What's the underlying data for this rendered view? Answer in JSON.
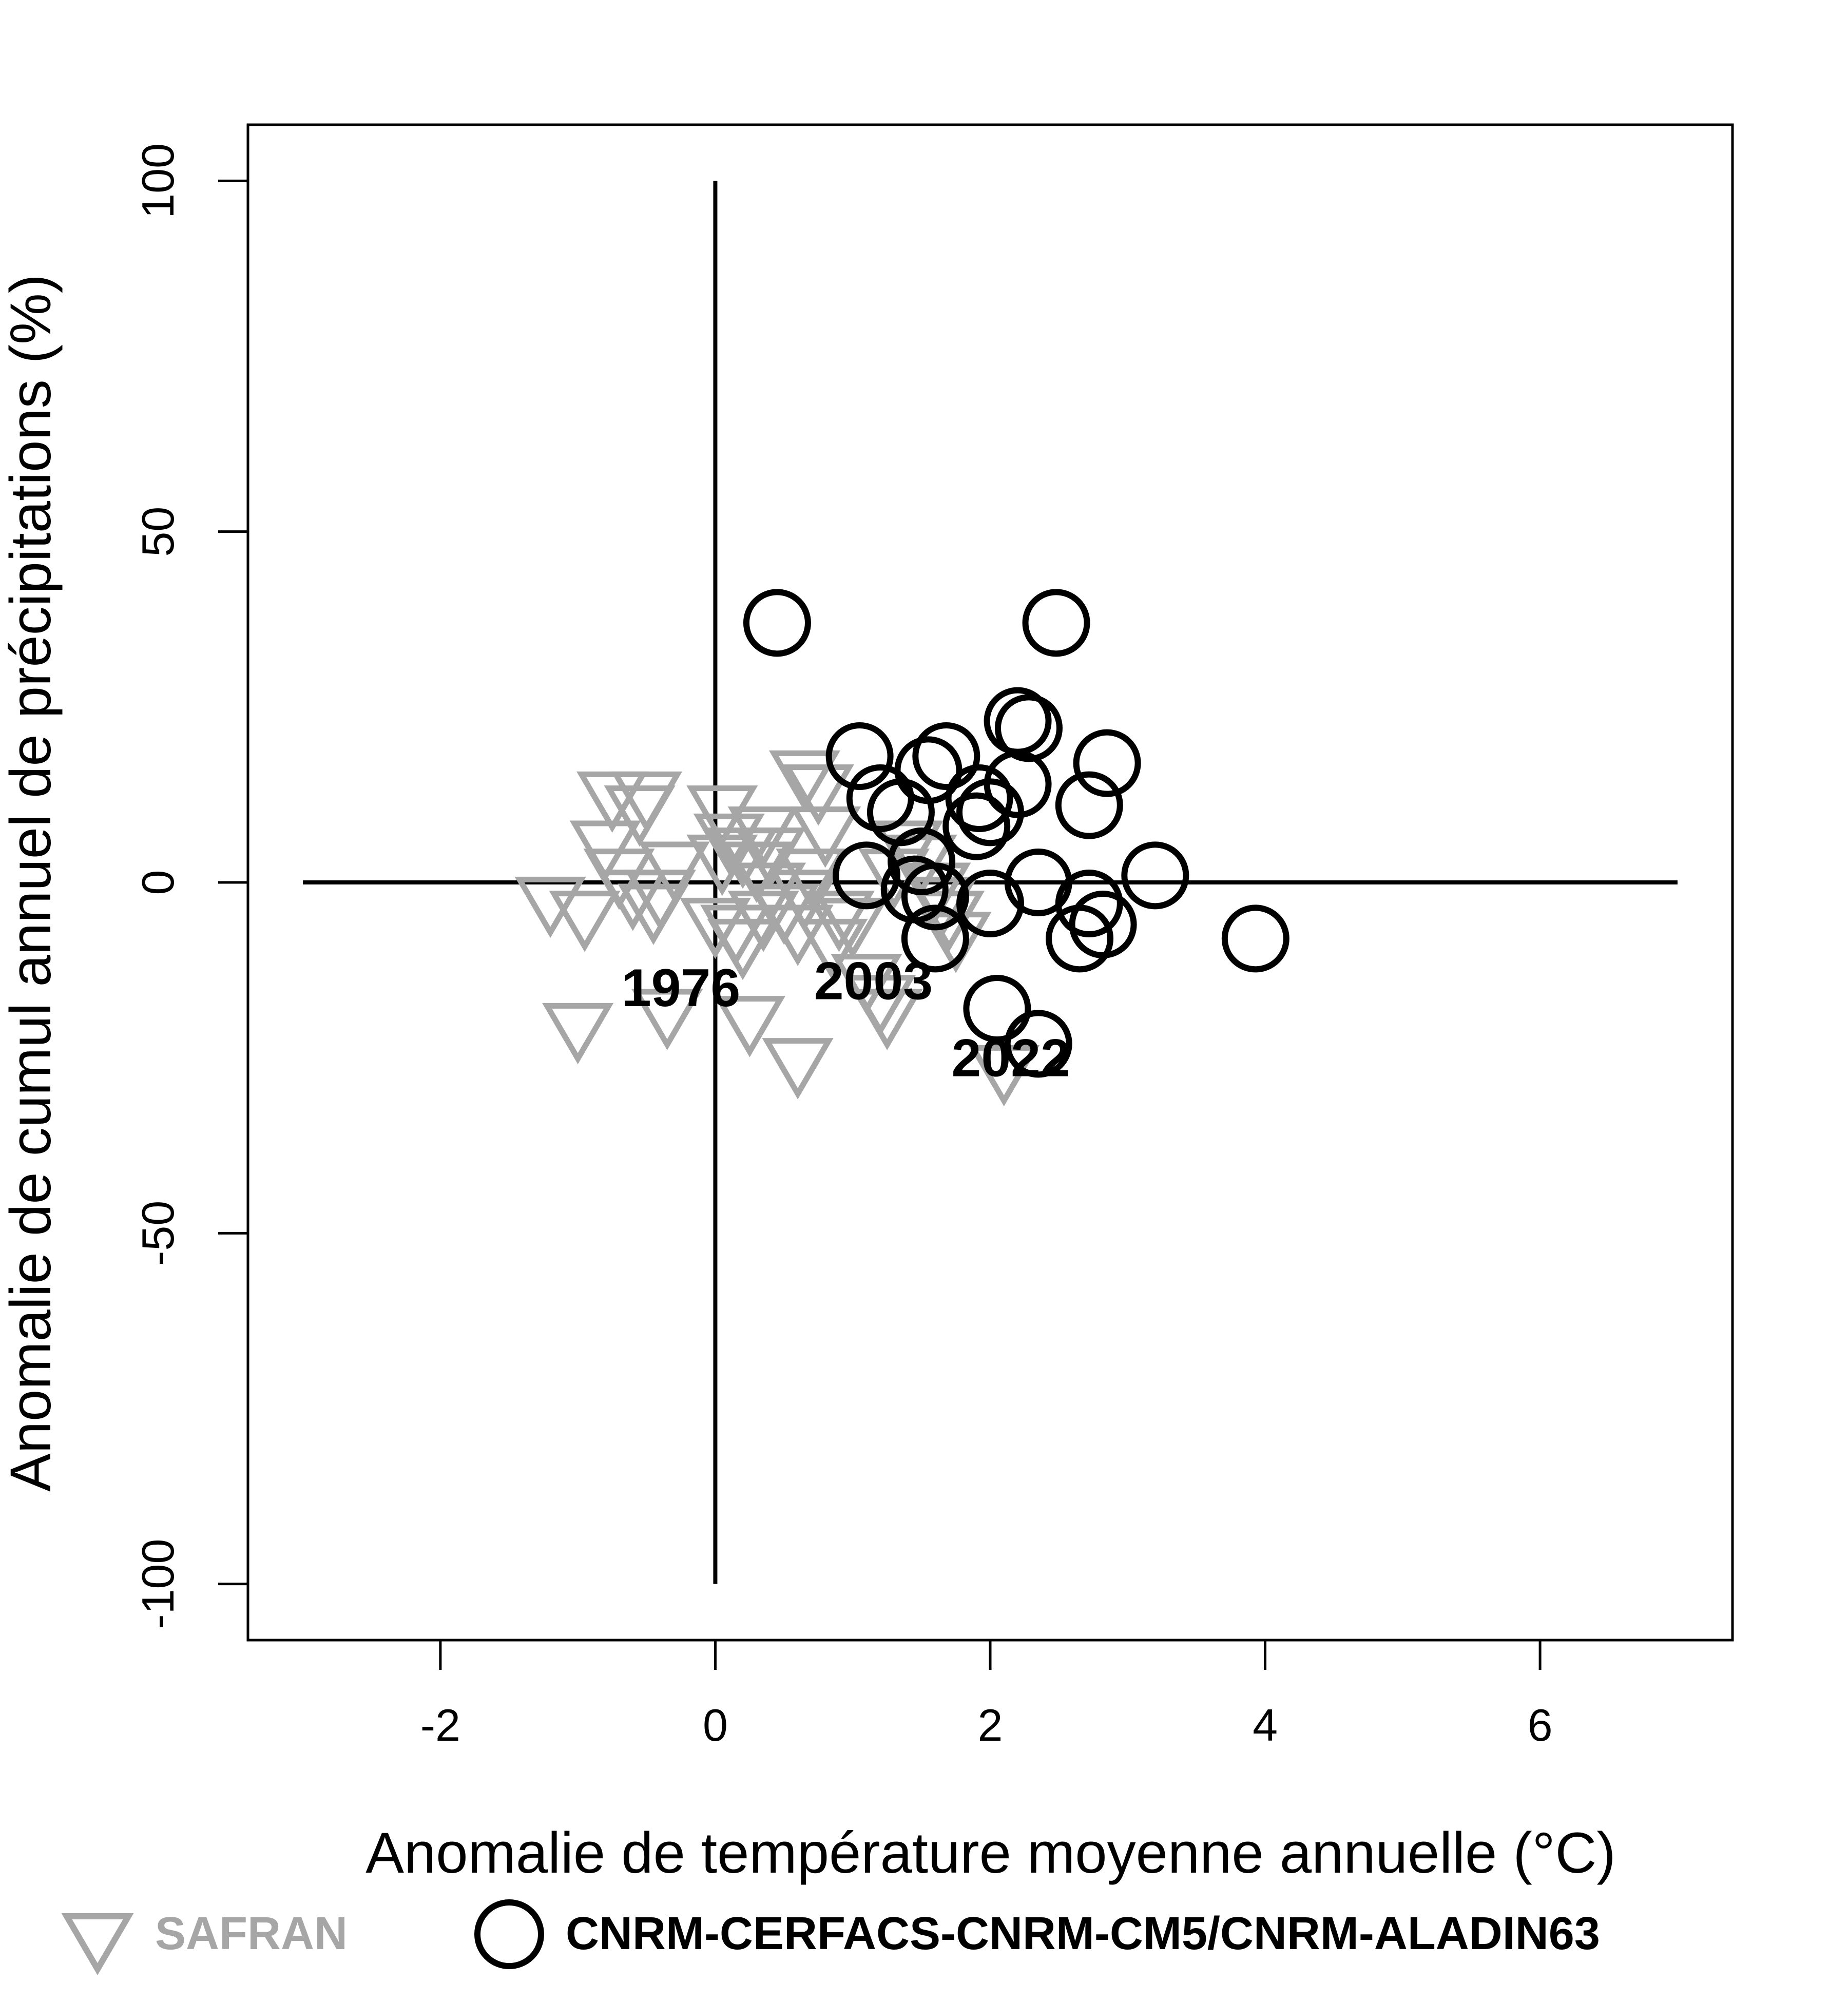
{
  "chart_data": {
    "type": "scatter",
    "xlabel": "Anomalie de température moyenne annuelle (°C)",
    "ylabel": "Anomalie de cumul annuel de précipitations (%)",
    "xlim": [
      -3.4,
      7.4
    ],
    "ylim": [
      -108,
      108
    ],
    "x_ticks": [
      -2,
      0,
      2,
      4,
      6
    ],
    "y_ticks": [
      -100,
      -50,
      0,
      50,
      100
    ],
    "reference_lines": {
      "horizontal": {
        "y": 0,
        "x_from": -3,
        "x_to": 7
      },
      "vertical": {
        "x": 0,
        "y_from": -100,
        "y_to": 100
      }
    },
    "series": [
      {
        "name": "SAFRAN",
        "marker": "triangle-down",
        "color": "#a6a6a6",
        "points": [
          [
            -1.2,
            -2
          ],
          [
            -0.95,
            -4
          ],
          [
            -1.0,
            -20
          ],
          [
            -0.75,
            13
          ],
          [
            -0.5,
            13
          ],
          [
            -0.8,
            6
          ],
          [
            -0.7,
            2
          ],
          [
            -0.6,
            -1
          ],
          [
            -0.45,
            -3
          ],
          [
            -0.4,
            -1
          ],
          [
            -0.35,
            -18
          ],
          [
            -0.55,
            11
          ],
          [
            -0.3,
            3
          ],
          [
            0.05,
            11
          ],
          [
            0.1,
            7
          ],
          [
            0.2,
            5
          ],
          [
            0.3,
            3
          ],
          [
            0.35,
            8
          ],
          [
            0.4,
            5
          ],
          [
            0.05,
            4
          ],
          [
            0.0,
            -5
          ],
          [
            0.15,
            -6
          ],
          [
            0.2,
            -8
          ],
          [
            0.25,
            -19
          ],
          [
            0.35,
            -4
          ],
          [
            0.4,
            0
          ],
          [
            0.5,
            -3
          ],
          [
            0.6,
            -6
          ],
          [
            0.6,
            -25
          ],
          [
            0.65,
            -1
          ],
          [
            0.7,
            2
          ],
          [
            0.75,
            14
          ],
          [
            0.8,
            8
          ],
          [
            0.85,
            -8
          ],
          [
            0.9,
            -4
          ],
          [
            1.0,
            -5
          ],
          [
            1.1,
            -13
          ],
          [
            1.2,
            -16
          ],
          [
            1.25,
            -18
          ],
          [
            0.65,
            16
          ],
          [
            1.3,
            2
          ],
          [
            1.4,
            6
          ],
          [
            1.5,
            4
          ],
          [
            1.6,
            0
          ],
          [
            1.65,
            -2
          ],
          [
            1.7,
            -4
          ],
          [
            1.75,
            -7
          ],
          [
            2.1,
            -26
          ]
        ]
      },
      {
        "name": "CNRM-CERFACS-CNRM-CM5/CNRM-ALADIN63",
        "marker": "circle",
        "color": "#000000",
        "points": [
          [
            0.45,
            37
          ],
          [
            2.48,
            37
          ],
          [
            2.2,
            23
          ],
          [
            2.28,
            22
          ],
          [
            1.05,
            18
          ],
          [
            1.68,
            18
          ],
          [
            2.85,
            17
          ],
          [
            1.55,
            16
          ],
          [
            2.2,
            14
          ],
          [
            2.72,
            11
          ],
          [
            1.2,
            12
          ],
          [
            1.35,
            10
          ],
          [
            1.92,
            12
          ],
          [
            2.0,
            10
          ],
          [
            1.9,
            8
          ],
          [
            3.2,
            1
          ],
          [
            2.35,
            0
          ],
          [
            1.1,
            1
          ],
          [
            1.6,
            -2
          ],
          [
            2.0,
            -3
          ],
          [
            2.72,
            -3
          ],
          [
            2.82,
            -6
          ],
          [
            2.65,
            -8
          ],
          [
            1.6,
            -8
          ],
          [
            3.93,
            -8
          ],
          [
            1.5,
            3
          ],
          [
            1.45,
            -1
          ],
          [
            2.05,
            -18
          ],
          [
            2.35,
            -23
          ]
        ]
      }
    ],
    "annotations": [
      {
        "text": "1976",
        "x": -0.25,
        "y": -15
      },
      {
        "text": "2003",
        "x": 1.15,
        "y": -14
      },
      {
        "text": "2022",
        "x": 2.15,
        "y": -25
      }
    ],
    "legend": {
      "position": "bottom",
      "entries": [
        {
          "label": "SAFRAN",
          "marker": "triangle-down",
          "color": "#a6a6a6"
        },
        {
          "label": "CNRM-CERFACS-CNRM-CM5/CNRM-ALADIN63",
          "marker": "circle",
          "color": "#000000"
        }
      ]
    }
  }
}
